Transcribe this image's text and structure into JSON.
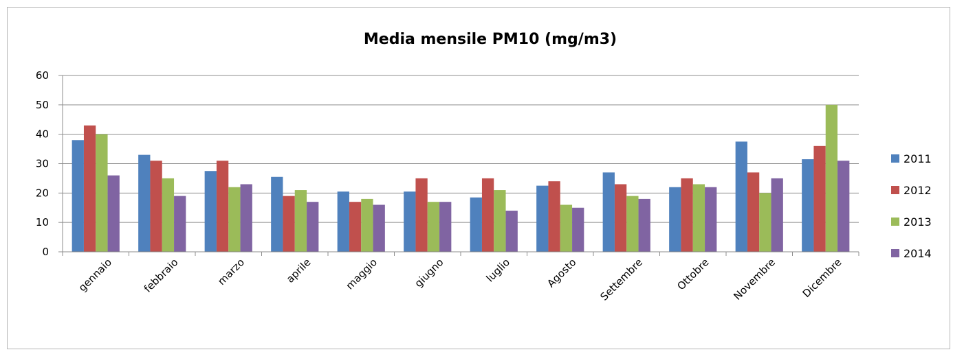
{
  "chart_data": {
    "type": "bar",
    "title": "Media mensile PM10 (mg/m3)",
    "xlabel": "",
    "ylabel": "",
    "ylim": [
      0,
      60
    ],
    "yticks": [
      "0",
      "10",
      "20",
      "30",
      "40",
      "50",
      "60"
    ],
    "grid": true,
    "legend_position": "right",
    "categories": [
      "gennaio",
      "febbraio",
      "marzo",
      "aprile",
      "maggio",
      "giugno",
      "luglio",
      "Agosto",
      "Settembre",
      "Ottobre",
      "Novembre",
      "Dicembre"
    ],
    "series": [
      {
        "name": "2011",
        "color": "#4f81bd",
        "values": [
          38,
          33,
          27.5,
          25.5,
          20.5,
          20.5,
          18.5,
          22.5,
          27,
          22,
          37.5,
          31.5
        ]
      },
      {
        "name": "2012",
        "color": "#c0504d",
        "values": [
          43,
          31,
          31,
          19,
          17,
          25,
          25,
          24,
          23,
          25,
          27,
          36
        ]
      },
      {
        "name": "2013",
        "color": "#9bbb59",
        "values": [
          40,
          25,
          22,
          21,
          18,
          17,
          21,
          16,
          19,
          23,
          20,
          50
        ]
      },
      {
        "name": "2014",
        "color": "#8064a2",
        "values": [
          26,
          19,
          23,
          17,
          16,
          17,
          14,
          15,
          18,
          22,
          25,
          31
        ]
      }
    ]
  }
}
